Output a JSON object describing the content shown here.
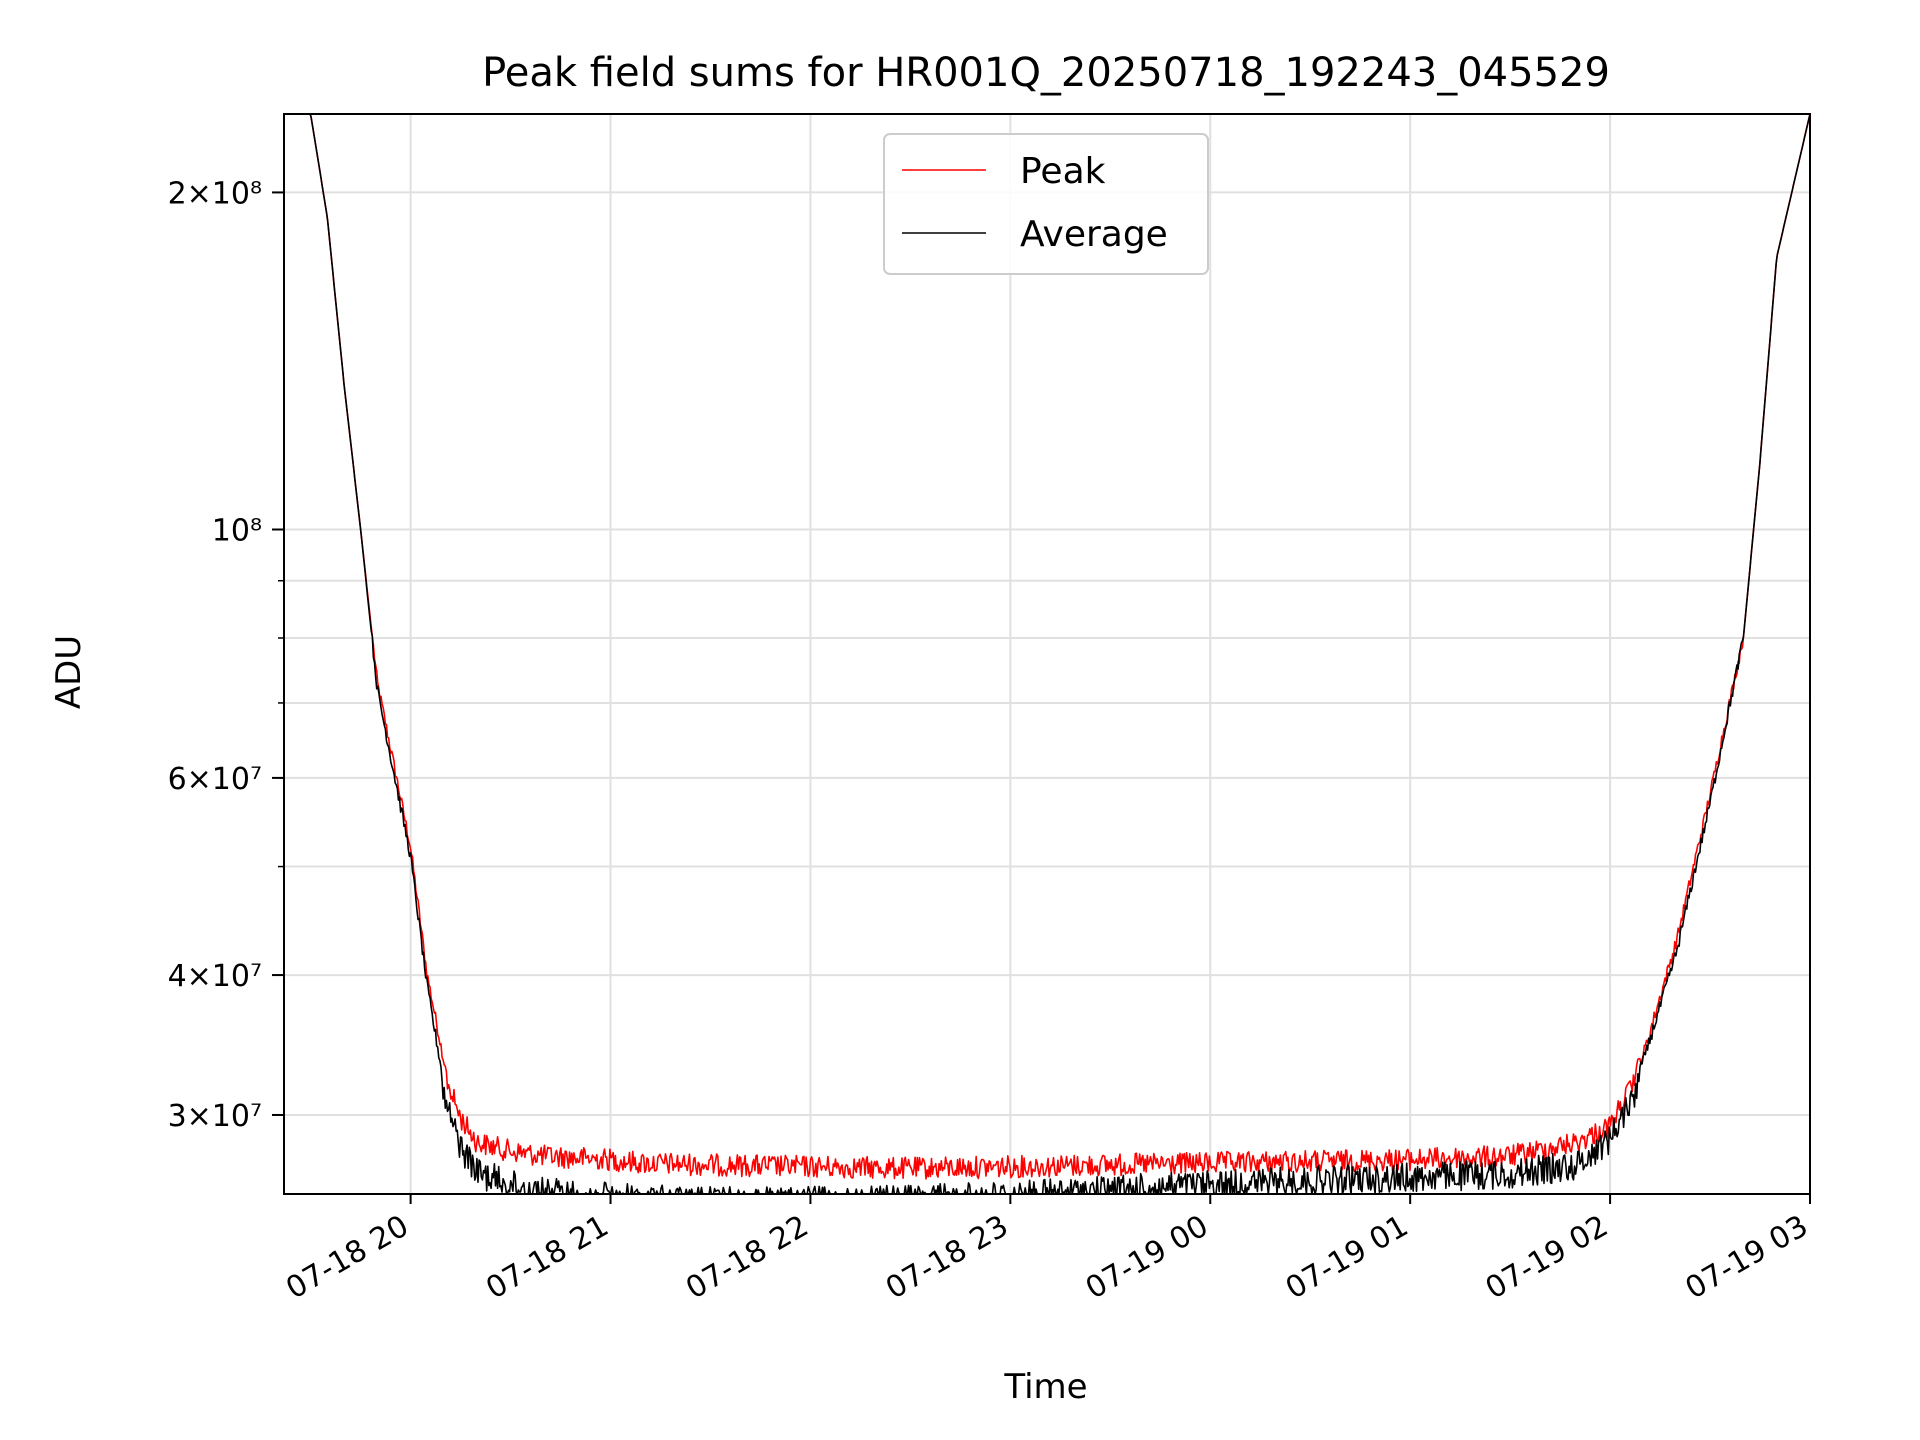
{
  "chart_data": {
    "type": "line",
    "title": "Peak field sums for HR001Q_20250718_192243_045529",
    "xlabel": "Time",
    "ylabel": "ADU",
    "y_scale": "log",
    "ylim": [
      25500000,
      235000000
    ],
    "xlim": [
      "2025-07-18 19:22",
      "2025-07-19 03:00"
    ],
    "grid": true,
    "legend_placement": "upper center",
    "x_tick_labels": [
      "07-18 20",
      "07-18 21",
      "07-18 22",
      "07-18 23",
      "07-19 00",
      "07-19 01",
      "07-19 02",
      "07-19 03"
    ],
    "y_tick_labels": [
      "2×10⁸",
      "10⁸",
      "6×10⁷",
      "4×10⁷",
      "3×10⁷"
    ],
    "y_tick_values": [
      200000000,
      100000000,
      60000000,
      40000000,
      30000000
    ],
    "series": [
      {
        "name": "Peak",
        "color": "#ff0000",
        "x": [
          "2025-07-18 19:22",
          "2025-07-18 19:30",
          "2025-07-18 19:35",
          "2025-07-18 19:40",
          "2025-07-18 19:45",
          "2025-07-18 19:50",
          "2025-07-18 20:00",
          "2025-07-18 20:05",
          "2025-07-18 20:10",
          "2025-07-18 20:15",
          "2025-07-18 20:20",
          "2025-07-18 20:30",
          "2025-07-18 20:40",
          "2025-07-18 21:00",
          "2025-07-18 21:10",
          "2025-07-18 21:30",
          "2025-07-18 22:00",
          "2025-07-18 22:30",
          "2025-07-18 23:00",
          "2025-07-18 23:30",
          "2025-07-19 00:00",
          "2025-07-19 00:30",
          "2025-07-19 01:00",
          "2025-07-19 01:30",
          "2025-07-19 01:50",
          "2025-07-19 02:00",
          "2025-07-19 02:10",
          "2025-07-19 02:20",
          "2025-07-19 02:30",
          "2025-07-19 02:40",
          "2025-07-19 02:45",
          "2025-07-19 02:50",
          "2025-07-19 03:00"
        ],
        "y": [
          235000000,
          235000000,
          190000000,
          135000000,
          100000000,
          73000000,
          52000000,
          40000000,
          33500000,
          30500000,
          29000000,
          28500000,
          28200000,
          28000000,
          27800000,
          27700000,
          27600000,
          27500000,
          27600000,
          27700000,
          27800000,
          27900000,
          28000000,
          28200000,
          29000000,
          30000000,
          34000000,
          43000000,
          58000000,
          80000000,
          115000000,
          175000000,
          235000000
        ]
      },
      {
        "name": "Average",
        "color": "#000000",
        "x": [
          "2025-07-18 19:22",
          "2025-07-18 19:30",
          "2025-07-18 19:35",
          "2025-07-18 19:40",
          "2025-07-18 19:45",
          "2025-07-18 19:50",
          "2025-07-18 20:00",
          "2025-07-18 20:05",
          "2025-07-18 20:10",
          "2025-07-18 20:15",
          "2025-07-18 20:20",
          "2025-07-18 20:30",
          "2025-07-18 20:40",
          "2025-07-18 21:00",
          "2025-07-18 21:10",
          "2025-07-18 21:30",
          "2025-07-18 22:00",
          "2025-07-18 22:30",
          "2025-07-18 23:00",
          "2025-07-18 23:30",
          "2025-07-19 00:00",
          "2025-07-19 00:30",
          "2025-07-19 01:00",
          "2025-07-19 01:30",
          "2025-07-19 01:50",
          "2025-07-19 02:00",
          "2025-07-19 02:10",
          "2025-07-19 02:20",
          "2025-07-19 02:30",
          "2025-07-19 02:40",
          "2025-07-19 02:45",
          "2025-07-19 02:50",
          "2025-07-19 03:00"
        ],
        "y": [
          235000000,
          235000000,
          190000000,
          135000000,
          100000000,
          72000000,
          51000000,
          39000000,
          32000000,
          29000000,
          27500000,
          26800000,
          26400000,
          26100000,
          26000000,
          25900000,
          25900000,
          26000000,
          26200000,
          26500000,
          26800000,
          27000000,
          27200000,
          27400000,
          27900000,
          29500000,
          33500000,
          42000000,
          57000000,
          80000000,
          115000000,
          175000000,
          235000000
        ]
      }
    ]
  }
}
